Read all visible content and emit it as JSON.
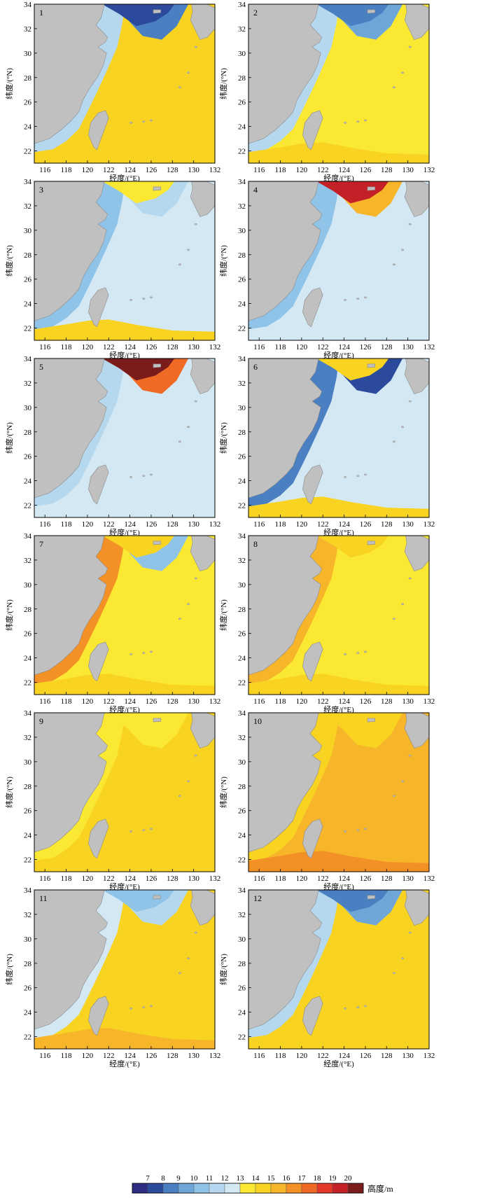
{
  "figure": {
    "xlabel": "经度/(°E)",
    "ylabel": "纬度/(°N)",
    "x_ticks": [
      "116",
      "118",
      "120",
      "122",
      "124",
      "126",
      "128",
      "130",
      "132"
    ],
    "y_ticks": [
      "22",
      "24",
      "26",
      "28",
      "30",
      "32",
      "34"
    ],
    "panel_numbers": [
      "1",
      "2",
      "3",
      "4",
      "5",
      "6",
      "7",
      "8",
      "9",
      "10",
      "11",
      "12"
    ]
  },
  "colorbar": {
    "ticks": [
      "7",
      "8",
      "9",
      "10",
      "11",
      "12",
      "13",
      "14",
      "15",
      "16",
      "17",
      "18",
      "19",
      "20"
    ],
    "unit_label": "高度/m",
    "colors": [
      "#2d2d82",
      "#2b4a9b",
      "#4a7fc1",
      "#6fa6d8",
      "#8fc3e8",
      "#b5d8ee",
      "#d3e8f3",
      "#fbe833",
      "#f9d322",
      "#f7b52a",
      "#f39026",
      "#ef6b25",
      "#e4382a",
      "#c42027",
      "#7b1c1c"
    ]
  },
  "map": {
    "land_color": "#c0c0c0",
    "coast_color": "#8a8a8a"
  },
  "chart_data": {
    "type": "heatmap",
    "description_of_fields": "monthly mean field of height (m) over East China Sea; values estimated per region",
    "x_range": [
      115,
      132
    ],
    "y_range": [
      21,
      34
    ],
    "colorbar_range": [
      6,
      21
    ],
    "panels": [
      {
        "panel": "1",
        "open_sea": 14,
        "southern_strip": 14,
        "coast_shelf": 11,
        "northeast_shelf": 8,
        "yellow_sea": 7
      },
      {
        "panel": "2",
        "open_sea": 13,
        "southern_strip": 14,
        "coast_shelf": 11,
        "northeast_shelf": 9,
        "yellow_sea": 8
      },
      {
        "panel": "3",
        "open_sea": 12,
        "southern_strip": 14,
        "coast_shelf": 10,
        "northeast_shelf": 11,
        "yellow_sea": 13
      },
      {
        "panel": "4",
        "open_sea": 12,
        "southern_strip": 12,
        "coast_shelf": 10,
        "northeast_shelf": 15,
        "yellow_sea": 19
      },
      {
        "panel": "5",
        "open_sea": 12,
        "southern_strip": 12,
        "coast_shelf": 11,
        "northeast_shelf": 17,
        "yellow_sea": 20
      },
      {
        "panel": "6",
        "open_sea": 12,
        "southern_strip": 14,
        "coast_shelf": 8,
        "northeast_shelf": 7,
        "yellow_sea": 14
      },
      {
        "panel": "7",
        "open_sea": 13,
        "southern_strip": 14,
        "coast_shelf": 16,
        "northeast_shelf": 10,
        "yellow_sea": 14
      },
      {
        "panel": "8",
        "open_sea": 13,
        "southern_strip": 14,
        "coast_shelf": 15,
        "northeast_shelf": 13,
        "yellow_sea": 14
      },
      {
        "panel": "9",
        "open_sea": 14,
        "southern_strip": 14,
        "coast_shelf": 13,
        "northeast_shelf": 13,
        "yellow_sea": 13
      },
      {
        "panel": "10",
        "open_sea": 15,
        "southern_strip": 16,
        "coast_shelf": 14,
        "northeast_shelf": 14,
        "yellow_sea": 14
      },
      {
        "panel": "11",
        "open_sea": 14,
        "southern_strip": 15,
        "coast_shelf": 12,
        "northeast_shelf": 11,
        "yellow_sea": 10
      },
      {
        "panel": "12",
        "open_sea": 14,
        "southern_strip": 14,
        "coast_shelf": 11,
        "northeast_shelf": 9,
        "yellow_sea": 8
      }
    ]
  }
}
